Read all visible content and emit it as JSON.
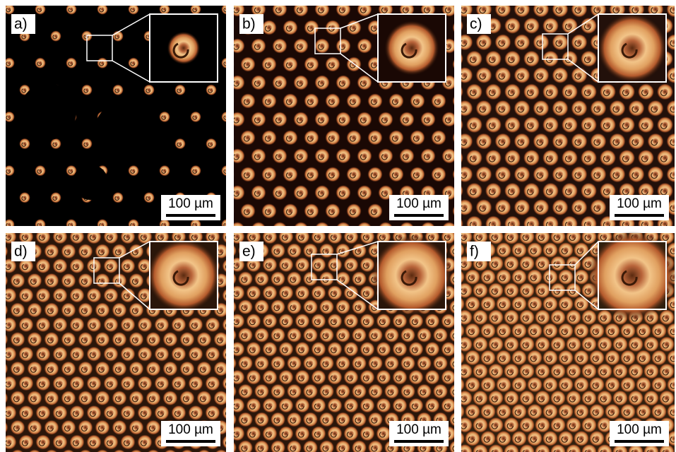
{
  "panels": [
    {
      "label": "a)",
      "scale_bar": "100 µm"
    },
    {
      "label": "b)",
      "scale_bar": "100 µm"
    },
    {
      "label": "c)",
      "scale_bar": "100 µm"
    },
    {
      "label": "d)",
      "scale_bar": "100 µm"
    },
    {
      "label": "e)",
      "scale_bar": "100 µm"
    },
    {
      "label": "f)",
      "scale_bar": "100 µm"
    }
  ]
}
